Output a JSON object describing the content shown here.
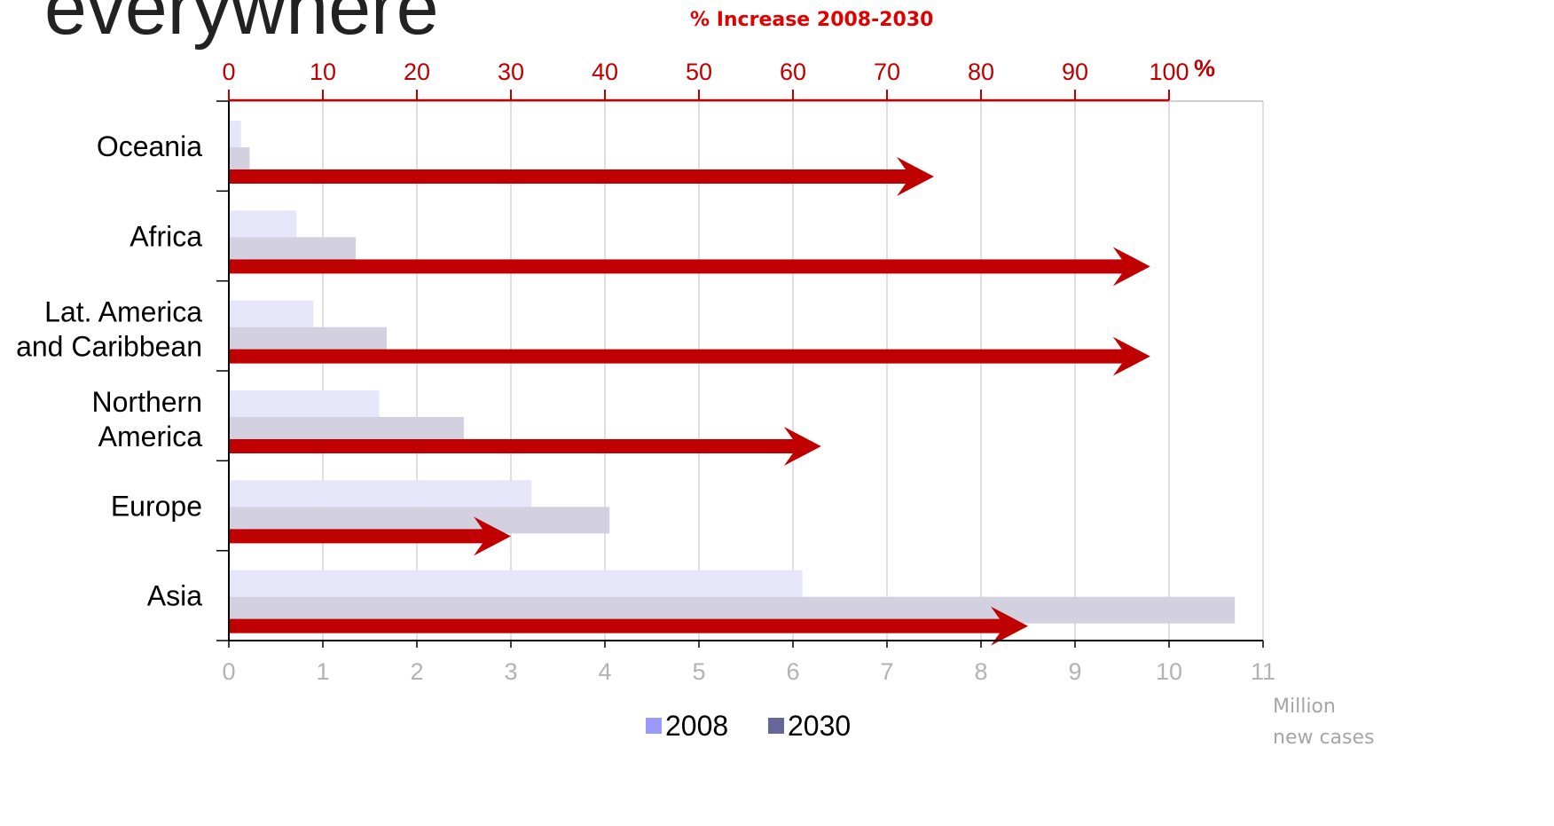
{
  "page_title_fragment": "everywhere",
  "chart_data": {
    "type": "bar",
    "orientation": "horizontal",
    "title": "% Increase 2008-2030",
    "categories": [
      "Oceania",
      "Africa",
      "Lat. America and Caribbean",
      "Northern America",
      "Europe",
      "Asia"
    ],
    "category_lines": [
      [
        "Oceania"
      ],
      [
        "Africa"
      ],
      [
        "Lat. America",
        "and Caribbean"
      ],
      [
        "Northern",
        "America"
      ],
      [
        "Europe"
      ],
      [
        "Asia"
      ]
    ],
    "series": [
      {
        "name": "2008",
        "values": [
          0.13,
          0.72,
          0.9,
          1.6,
          3.22,
          6.1
        ],
        "color": "#e6e6fa",
        "legend_color": "#9999ff"
      },
      {
        "name": "2030",
        "values": [
          0.22,
          1.35,
          1.68,
          2.5,
          4.05,
          10.7
        ],
        "color": "#d3d1df",
        "legend_color": "#666699"
      }
    ],
    "percent_increase": {
      "values": [
        75,
        98,
        98,
        63,
        30,
        85
      ],
      "color": "#c00000",
      "axis_ticks": [
        "0",
        "10",
        "20",
        "30",
        "40",
        "50",
        "60",
        "70",
        "80",
        "90",
        "100"
      ],
      "axis_unit": "%",
      "xlim": [
        0,
        100
      ]
    },
    "x_axis": {
      "ticks": [
        "0",
        "1",
        "2",
        "3",
        "4",
        "5",
        "6",
        "7",
        "8",
        "9",
        "10",
        "11"
      ],
      "unit_label": [
        "Million",
        "new cases"
      ],
      "xlim": [
        0,
        11
      ]
    },
    "grid": true,
    "legend": {
      "position": "bottom",
      "entries": [
        "2008",
        "2030"
      ]
    }
  }
}
